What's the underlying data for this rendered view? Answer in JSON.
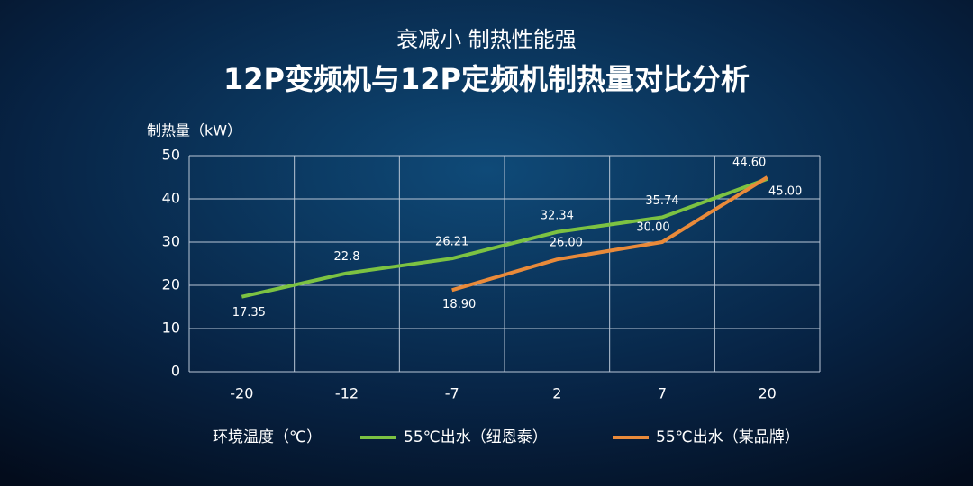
{
  "chart_data": {
    "type": "line",
    "subtitle": "衰减小 制热性能强",
    "title": "12P变频机与12P定频机制热量对比分析",
    "y_label": "制热量（kW）",
    "x_label": "环境温度（℃）",
    "categories": [
      "-20",
      "-12",
      "-7",
      "2",
      "7",
      "20"
    ],
    "series": [
      {
        "name": "55℃出水（纽恩泰）",
        "color": "#7cc242",
        "values": [
          17.35,
          22.8,
          26.21,
          32.34,
          35.74,
          44.6
        ],
        "value_labels": [
          "17.35",
          "22.8",
          "26.21",
          "32.34",
          "35.74",
          "44.60"
        ]
      },
      {
        "name": "55℃出水（某品牌）",
        "color": "#e98a3a",
        "values": [
          null,
          null,
          18.9,
          26.0,
          30.0,
          45.0
        ],
        "value_labels": [
          null,
          null,
          "18.90",
          "26.00",
          "30.00",
          "45.00"
        ]
      }
    ],
    "ylim": [
      0,
      50
    ],
    "yticks": [
      0,
      10,
      20,
      30,
      40,
      50
    ],
    "grid": true
  }
}
